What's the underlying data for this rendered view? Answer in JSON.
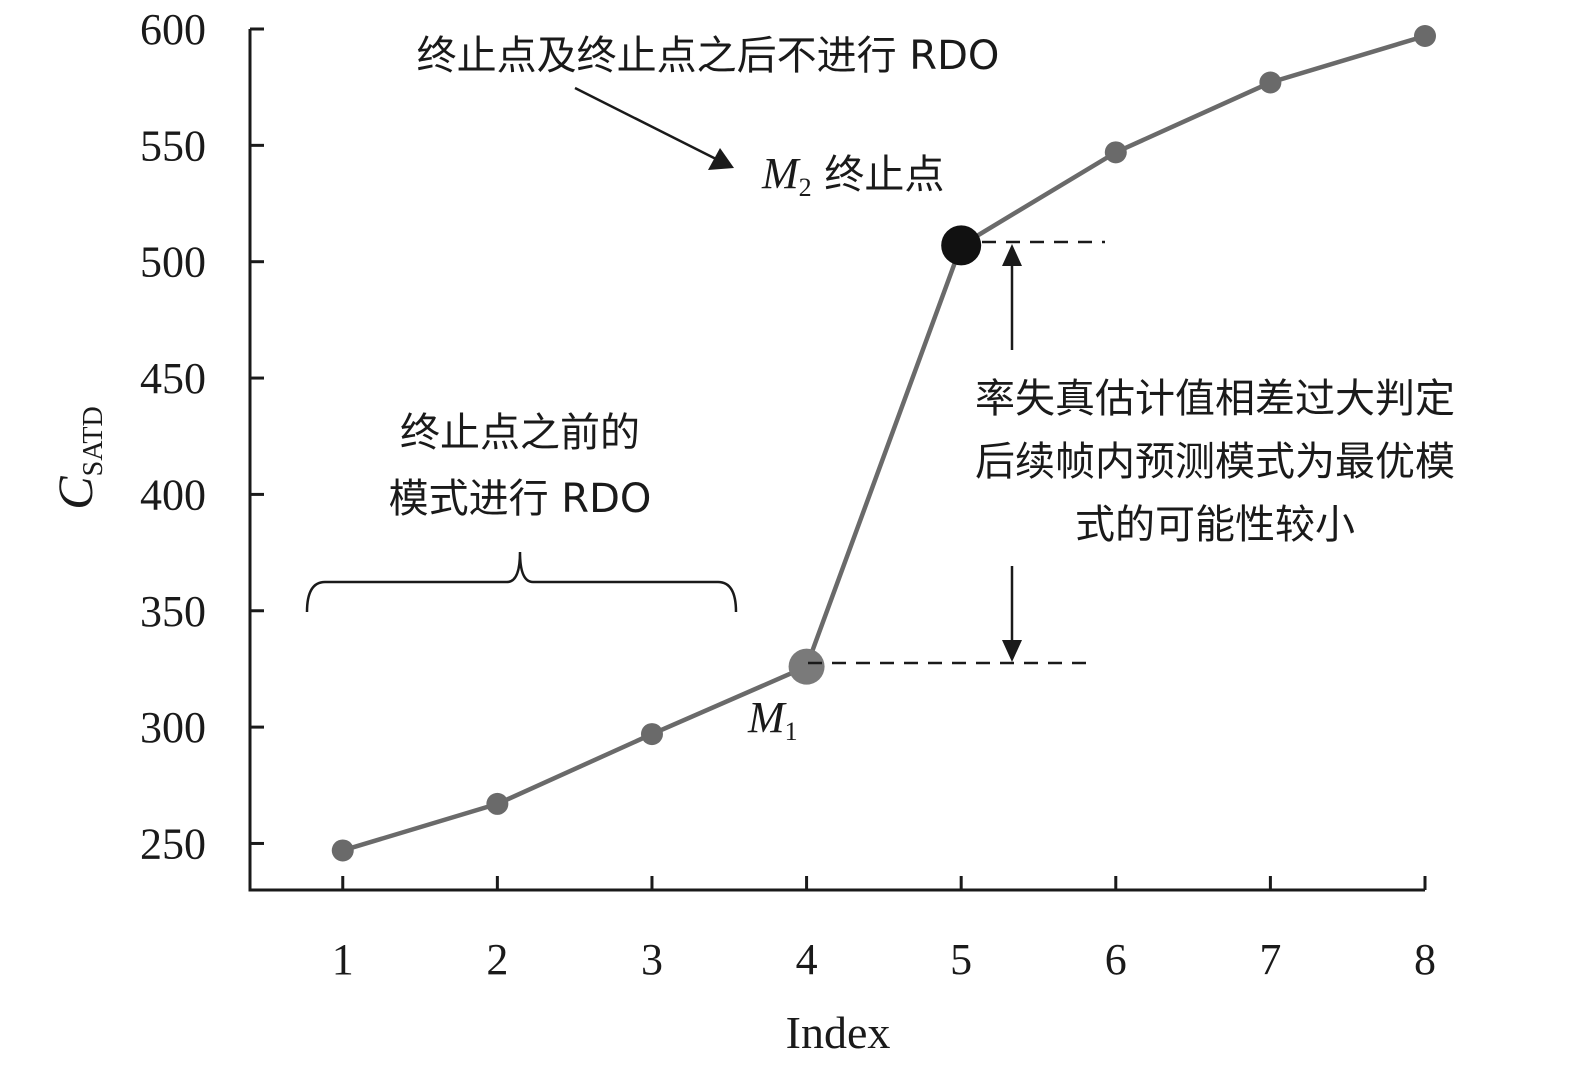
{
  "chart_data": {
    "type": "line",
    "xlabel": "Index",
    "ylabel_main": "C",
    "ylabel_sub": "SATD",
    "x": [
      1,
      2,
      3,
      4,
      5,
      6,
      7,
      8
    ],
    "y": [
      247,
      267,
      297,
      326,
      507,
      547,
      577,
      597
    ],
    "xlim": [
      0.4,
      8
    ],
    "ylim": [
      230,
      600
    ],
    "yticks": [
      250,
      300,
      350,
      400,
      450,
      500,
      550,
      600
    ],
    "xticks": [
      1,
      2,
      3,
      4,
      5,
      6,
      7,
      8
    ],
    "grid": false,
    "colors": {
      "line": "#6a6a6a",
      "point": "#6a6a6a",
      "m1_point": "#7a7a7a",
      "m2_point": "#111111"
    },
    "highlight": {
      "m1_index": 4,
      "m2_index": 5
    },
    "annotations": {
      "top_text": "终止点及终止点之后不进行 RDO",
      "m2_label": "M",
      "m2_sub": "2",
      "m2_suffix": " 终止点",
      "m1_label": "M",
      "m1_sub": "1",
      "left_text_line1": "终止点之前的",
      "left_text_line2": "模式进行 RDO",
      "right_text_line1": "率失真估计值相差过大判定",
      "right_text_line2": "后续帧内预测模式为最优模",
      "right_text_line3": "式的可能性较小"
    }
  }
}
